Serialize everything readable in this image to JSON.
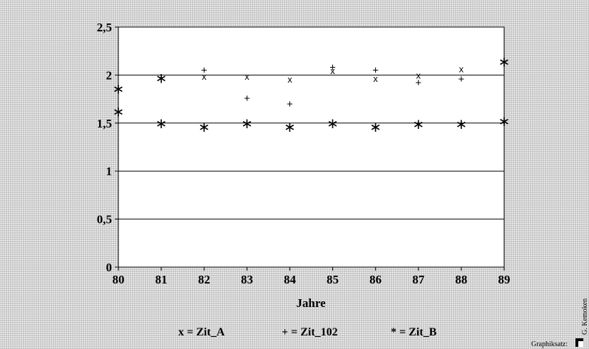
{
  "chart_data": {
    "type": "scatter",
    "xlabel": "Jahre",
    "ylabel": "",
    "xlim": [
      80,
      89
    ],
    "ylim": [
      0,
      2.5
    ],
    "x_ticks": [
      "80",
      "81",
      "82",
      "83",
      "84",
      "85",
      "86",
      "87",
      "88",
      "89"
    ],
    "y_ticks": [
      "0",
      "0,5",
      "1",
      "1,5",
      "2",
      "2,5"
    ],
    "grid": "horizontal",
    "series": [
      {
        "name": "Zit_A",
        "symbol": "x",
        "points": [
          [
            82,
            1.98
          ],
          [
            83,
            1.98
          ],
          [
            84,
            1.95
          ],
          [
            85,
            2.04
          ],
          [
            86,
            1.96
          ],
          [
            87,
            1.99
          ],
          [
            88,
            2.06
          ]
        ]
      },
      {
        "name": "Zit_102",
        "symbol": "+",
        "points": [
          [
            82,
            2.05
          ],
          [
            83,
            1.76
          ],
          [
            84,
            1.7
          ],
          [
            85,
            2.08
          ],
          [
            86,
            2.05
          ],
          [
            87,
            1.92
          ],
          [
            88,
            1.96
          ]
        ]
      },
      {
        "name": "Zit_B",
        "symbol": "*",
        "points": [
          [
            80,
            1.86
          ],
          [
            80,
            1.62
          ],
          [
            81,
            1.97
          ],
          [
            81,
            1.5
          ],
          [
            82,
            1.46
          ],
          [
            83,
            1.5
          ],
          [
            84,
            1.46
          ],
          [
            85,
            1.5
          ],
          [
            86,
            1.46
          ],
          [
            87,
            1.49
          ],
          [
            88,
            1.49
          ],
          [
            89,
            2.14
          ],
          [
            89,
            1.52
          ]
        ]
      }
    ]
  },
  "legend": {
    "zit_a": "x = Zit_A",
    "zit_102": "+ = Zit_102",
    "zit_b": "* = Zit_B"
  },
  "credit": {
    "label": "Graphiksatz:",
    "author": "G. Kemoken"
  }
}
